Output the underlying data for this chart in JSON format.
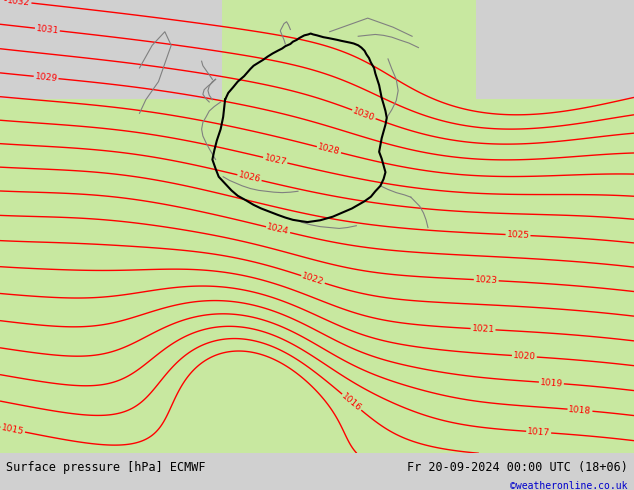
{
  "title_left": "Surface pressure [hPa] ECMWF",
  "title_right": "Fr 20-09-2024 00:00 UTC (18+06)",
  "credit": "©weatheronline.co.uk",
  "credit_color": "#0000cc",
  "fig_width": 6.34,
  "fig_height": 4.9,
  "dpi": 100,
  "contour_color": "#ff0000",
  "border_color_de": "#000000",
  "border_color_neighbor": "#808080",
  "bar_color": "#d0d0d0",
  "sea_color": "#d8d8d8",
  "land_color": "#c8e8a0",
  "fontsize_labels": 6.5,
  "fontsize_title": 8.5,
  "fontsize_credit": 7
}
